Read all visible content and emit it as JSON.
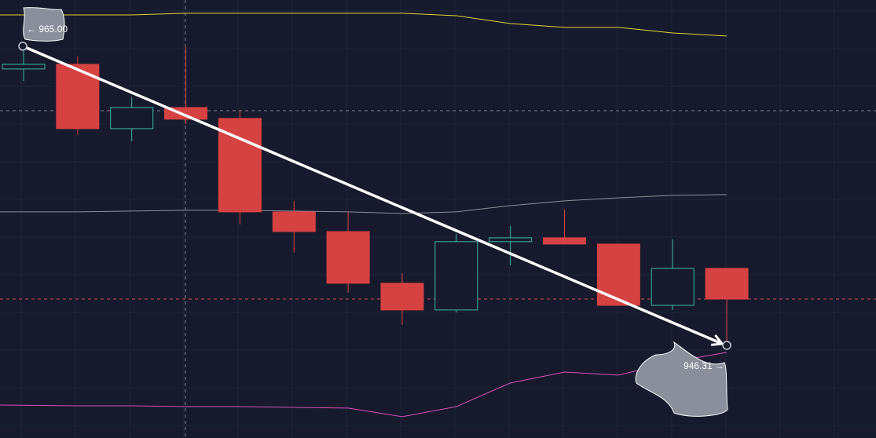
{
  "chart_data": {
    "type": "candlestick",
    "ylim": [
      940.52,
      967.89
    ],
    "grid": true,
    "up_color": "#3fb8a6",
    "down_color": "#d64242",
    "open": [
      963.58,
      963.87,
      959.85,
      961.17,
      960.49,
      954.65,
      953.42,
      950.19,
      948.52,
      952.79,
      953.03,
      952.64,
      948.81,
      951.12
    ],
    "high": [
      964.71,
      964.36,
      961.81,
      964.95,
      961.03,
      955.34,
      954.65,
      950.82,
      953.28,
      953.77,
      954.8,
      952.64,
      952.93,
      951.12
    ],
    "low": [
      962.84,
      959.46,
      959.06,
      960.14,
      953.86,
      952.1,
      949.6,
      947.59,
      948.37,
      951.31,
      952.64,
      948.81,
      948.52,
      946.31
    ],
    "close": [
      963.87,
      959.85,
      961.17,
      960.44,
      954.65,
      953.42,
      950.19,
      948.52,
      952.79,
      953.03,
      952.64,
      948.81,
      951.12,
      949.2
    ],
    "series": [
      {
        "color": "#e3d43a",
        "values": [
          966.96,
          966.96,
          966.96,
          967.06,
          967.06,
          967.06,
          967.06,
          967.06,
          966.91,
          966.42,
          966.18,
          966.18,
          965.83,
          965.64
        ]
      },
      {
        "color": "#8c8f99",
        "values": [
          954.65,
          954.65,
          954.7,
          954.75,
          954.75,
          954.7,
          954.65,
          954.55,
          954.65,
          955.04,
          955.34,
          955.53,
          955.68,
          955.73
        ]
      },
      {
        "color": "#d451b8",
        "values": [
          942.58,
          942.53,
          942.53,
          942.48,
          942.48,
          942.43,
          942.39,
          941.85,
          942.48,
          943.96,
          944.64,
          944.45,
          945.28,
          945.87
        ]
      }
    ],
    "trend": {
      "start": {
        "value": 965.0,
        "label": "← 965.00"
      },
      "end": {
        "value": 946.31,
        "label": "946.31 →"
      }
    }
  }
}
